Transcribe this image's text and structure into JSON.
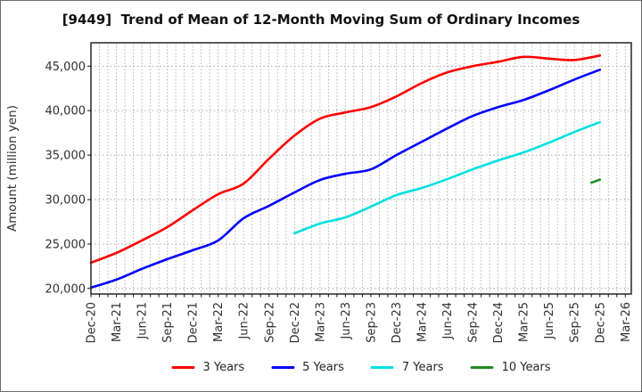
{
  "chart_data": {
    "type": "line",
    "title": "[9449]  Trend of Mean of 12-Month Moving Sum of Ordinary Incomes",
    "xlabel": "",
    "ylabel": "Amount (million yen)",
    "grid": true,
    "legend_position": "bottom",
    "ylim": [
      19350,
      47650
    ],
    "y_ticks": [
      20000,
      25000,
      30000,
      35000,
      40000,
      45000
    ],
    "y_ticklabels": [
      "20,000",
      "25,000",
      "30,000",
      "35,000",
      "40,000",
      "45,000"
    ],
    "x_ticklabels": [
      "Dec-20",
      "Mar-21",
      "Jun-21",
      "Sep-21",
      "Dec-21",
      "Mar-22",
      "Jun-22",
      "Sep-22",
      "Dec-22",
      "Mar-23",
      "Jun-23",
      "Sep-23",
      "Dec-23",
      "Mar-24",
      "Jun-24",
      "Sep-24",
      "Dec-24",
      "Mar-25",
      "Jun-25",
      "Sep-25",
      "Dec-25",
      "Mar-26"
    ],
    "series": [
      {
        "name": "3 Years",
        "color": "#ff0000",
        "x": [
          "Dec-20",
          "Mar-21",
          "Jun-21",
          "Sep-21",
          "Dec-21",
          "Mar-22",
          "Jun-22",
          "Sep-22",
          "Dec-22",
          "Mar-23",
          "Jun-23",
          "Sep-23",
          "Dec-23",
          "Mar-24",
          "Jun-24",
          "Sep-24",
          "Dec-24",
          "Mar-25",
          "Jun-25",
          "Sep-25",
          "Dec-25"
        ],
        "values": [
          22900,
          24000,
          25400,
          26900,
          28800,
          30600,
          31800,
          34600,
          37200,
          39100,
          39800,
          40400,
          41600,
          43100,
          44300,
          45000,
          45500,
          46050,
          45850,
          45700,
          46200
        ]
      },
      {
        "name": "5 Years",
        "color": "#0000ff",
        "x": [
          "Dec-20",
          "Mar-21",
          "Jun-21",
          "Sep-21",
          "Dec-21",
          "Mar-22",
          "Jun-22",
          "Sep-22",
          "Dec-22",
          "Mar-23",
          "Jun-23",
          "Sep-23",
          "Dec-23",
          "Mar-24",
          "Jun-24",
          "Sep-24",
          "Dec-24",
          "Mar-25",
          "Jun-25",
          "Sep-25",
          "Dec-25"
        ],
        "values": [
          20100,
          21000,
          22200,
          23300,
          24300,
          25400,
          27900,
          29300,
          30800,
          32200,
          32900,
          33400,
          35000,
          36500,
          38000,
          39400,
          40400,
          41200,
          42300,
          43500,
          44600
        ]
      },
      {
        "name": "7 Years",
        "color": "#00e0e0",
        "x": [
          "Dec-22",
          "Mar-23",
          "Jun-23",
          "Sep-23",
          "Dec-23",
          "Mar-24",
          "Jun-24",
          "Sep-24",
          "Dec-24",
          "Mar-25",
          "Jun-25",
          "Sep-25",
          "Dec-25"
        ],
        "values": [
          26200,
          27300,
          28000,
          29200,
          30500,
          31300,
          32300,
          33400,
          34400,
          35300,
          36400,
          37600,
          38700
        ]
      },
      {
        "name": "10 Years",
        "color": "#228b22",
        "x": [
          "Nov-25",
          "Dec-25"
        ],
        "values": [
          31900,
          32250
        ]
      }
    ]
  }
}
